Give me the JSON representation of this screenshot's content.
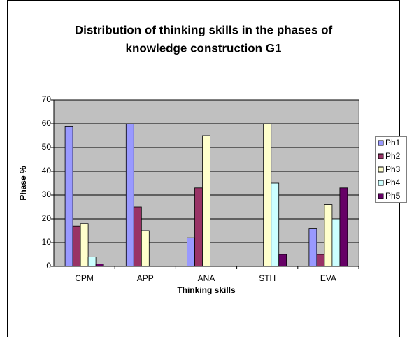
{
  "chart_data": {
    "type": "bar",
    "title": [
      "Distribution of thinking skills in the phases of",
      "knowledge construction G1"
    ],
    "x_label": "Thinking skills",
    "y_label": "Phase %",
    "categories": [
      "CPM",
      "APP",
      "ANA",
      "STH",
      "EVA"
    ],
    "series": [
      {
        "name": "Ph1",
        "color": "#9999ff",
        "values": [
          59,
          60,
          12,
          null,
          16
        ]
      },
      {
        "name": "Ph2",
        "color": "#993366",
        "values": [
          17,
          25,
          33,
          null,
          5
        ]
      },
      {
        "name": "Ph3",
        "color": "#ffffcc",
        "values": [
          18,
          15,
          55,
          60,
          26
        ]
      },
      {
        "name": "Ph4",
        "color": "#ccffff",
        "values": [
          4,
          null,
          null,
          35,
          20
        ]
      },
      {
        "name": "Ph5",
        "color": "#660066",
        "values": [
          1,
          null,
          null,
          5,
          33
        ]
      }
    ],
    "ylim": [
      0,
      70
    ],
    "yticks": [
      0,
      10,
      20,
      30,
      40,
      50,
      60,
      70
    ],
    "grid": true,
    "legend": "right"
  }
}
